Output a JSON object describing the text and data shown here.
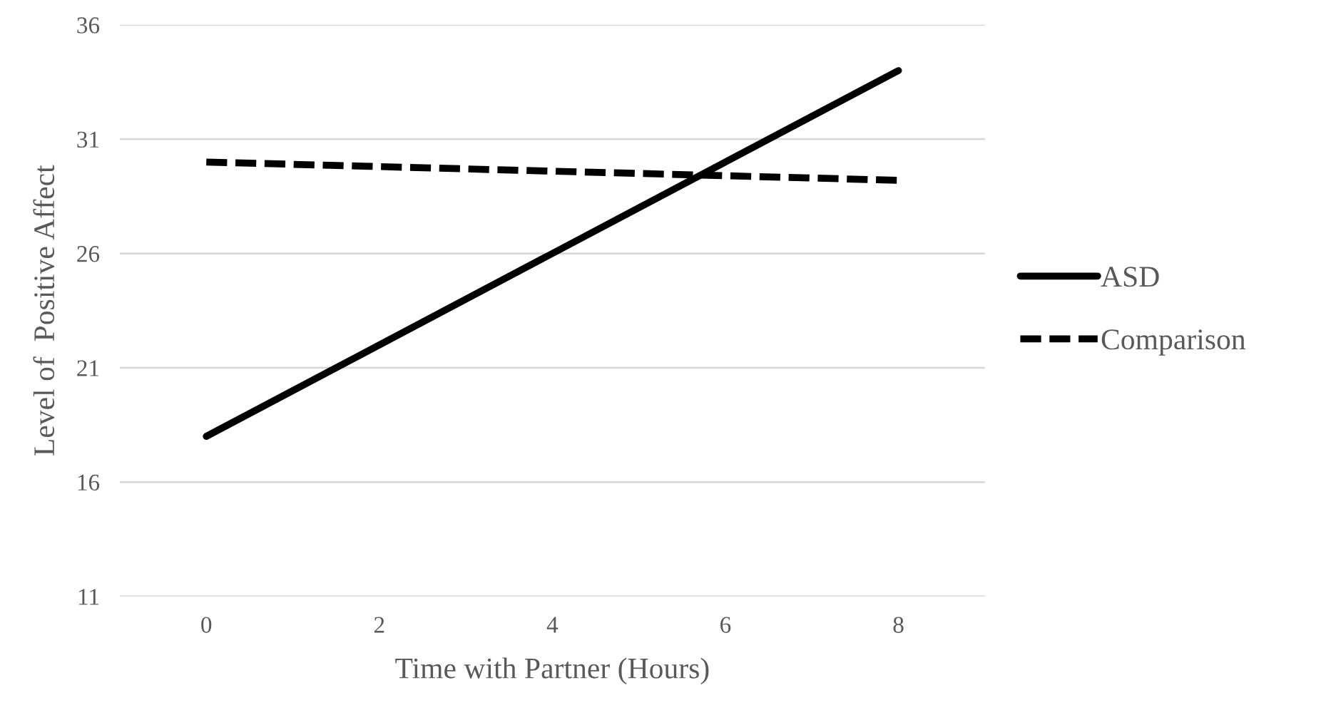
{
  "chart_data": {
    "type": "line",
    "xlabel": "Time with Partner (Hours)",
    "ylabel": "Level of  Positive Affect",
    "x": [
      0,
      8
    ],
    "series": [
      {
        "name": "ASD",
        "color": "#000000",
        "values": [
          18,
          34
        ],
        "line_style": "solid"
      },
      {
        "name": "Comparison",
        "color": "#000000",
        "values": [
          30,
          29.2
        ],
        "line_style": "dashed"
      }
    ],
    "xlim": [
      -1,
      9
    ],
    "xticks": [
      0,
      2,
      4,
      6,
      8
    ],
    "ylim": [
      11,
      36
    ],
    "yticks": [
      11,
      16,
      21,
      26,
      31,
      36
    ],
    "grid": "y",
    "legend": "right",
    "marker": "none"
  }
}
